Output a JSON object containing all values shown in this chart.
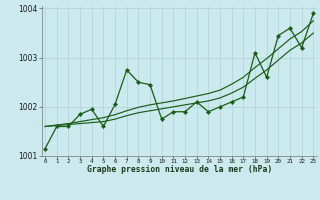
{
  "xlabel": "Graphe pression niveau de la mer (hPa)",
  "background_color": "#cce9ed",
  "grid_color": "#aad4d8",
  "line_color": "#1a5c1a",
  "x_values": [
    0,
    1,
    2,
    3,
    4,
    5,
    6,
    7,
    8,
    9,
    10,
    11,
    12,
    13,
    14,
    15,
    16,
    17,
    18,
    19,
    20,
    21,
    22,
    23
  ],
  "y_main": [
    1001.15,
    1001.6,
    1001.6,
    1001.85,
    1001.95,
    1001.6,
    1002.05,
    1002.75,
    1002.5,
    1002.45,
    1001.75,
    1001.9,
    1001.9,
    1002.1,
    1001.9,
    1002.0,
    1002.1,
    1002.2,
    1003.1,
    1002.6,
    1003.45,
    1003.6,
    1003.2,
    1003.9
  ],
  "y_trend1": [
    1001.6,
    1001.62,
    1001.64,
    1001.66,
    1001.68,
    1001.7,
    1001.75,
    1001.82,
    1001.88,
    1001.92,
    1001.96,
    1002.0,
    1002.04,
    1002.08,
    1002.12,
    1002.18,
    1002.28,
    1002.4,
    1002.58,
    1002.75,
    1002.95,
    1003.15,
    1003.3,
    1003.5
  ],
  "y_trend2": [
    1001.6,
    1001.63,
    1001.66,
    1001.7,
    1001.74,
    1001.78,
    1001.84,
    1001.92,
    1001.99,
    1002.04,
    1002.08,
    1002.12,
    1002.17,
    1002.22,
    1002.27,
    1002.34,
    1002.46,
    1002.6,
    1002.8,
    1002.98,
    1003.18,
    1003.38,
    1003.53,
    1003.75
  ],
  "ylim": [
    1001.0,
    1004.05
  ],
  "yticks": [
    1001,
    1002,
    1003,
    1004
  ],
  "xlim": [
    -0.3,
    23.3
  ],
  "fig_width": 3.2,
  "fig_height": 2.0,
  "dpi": 100
}
